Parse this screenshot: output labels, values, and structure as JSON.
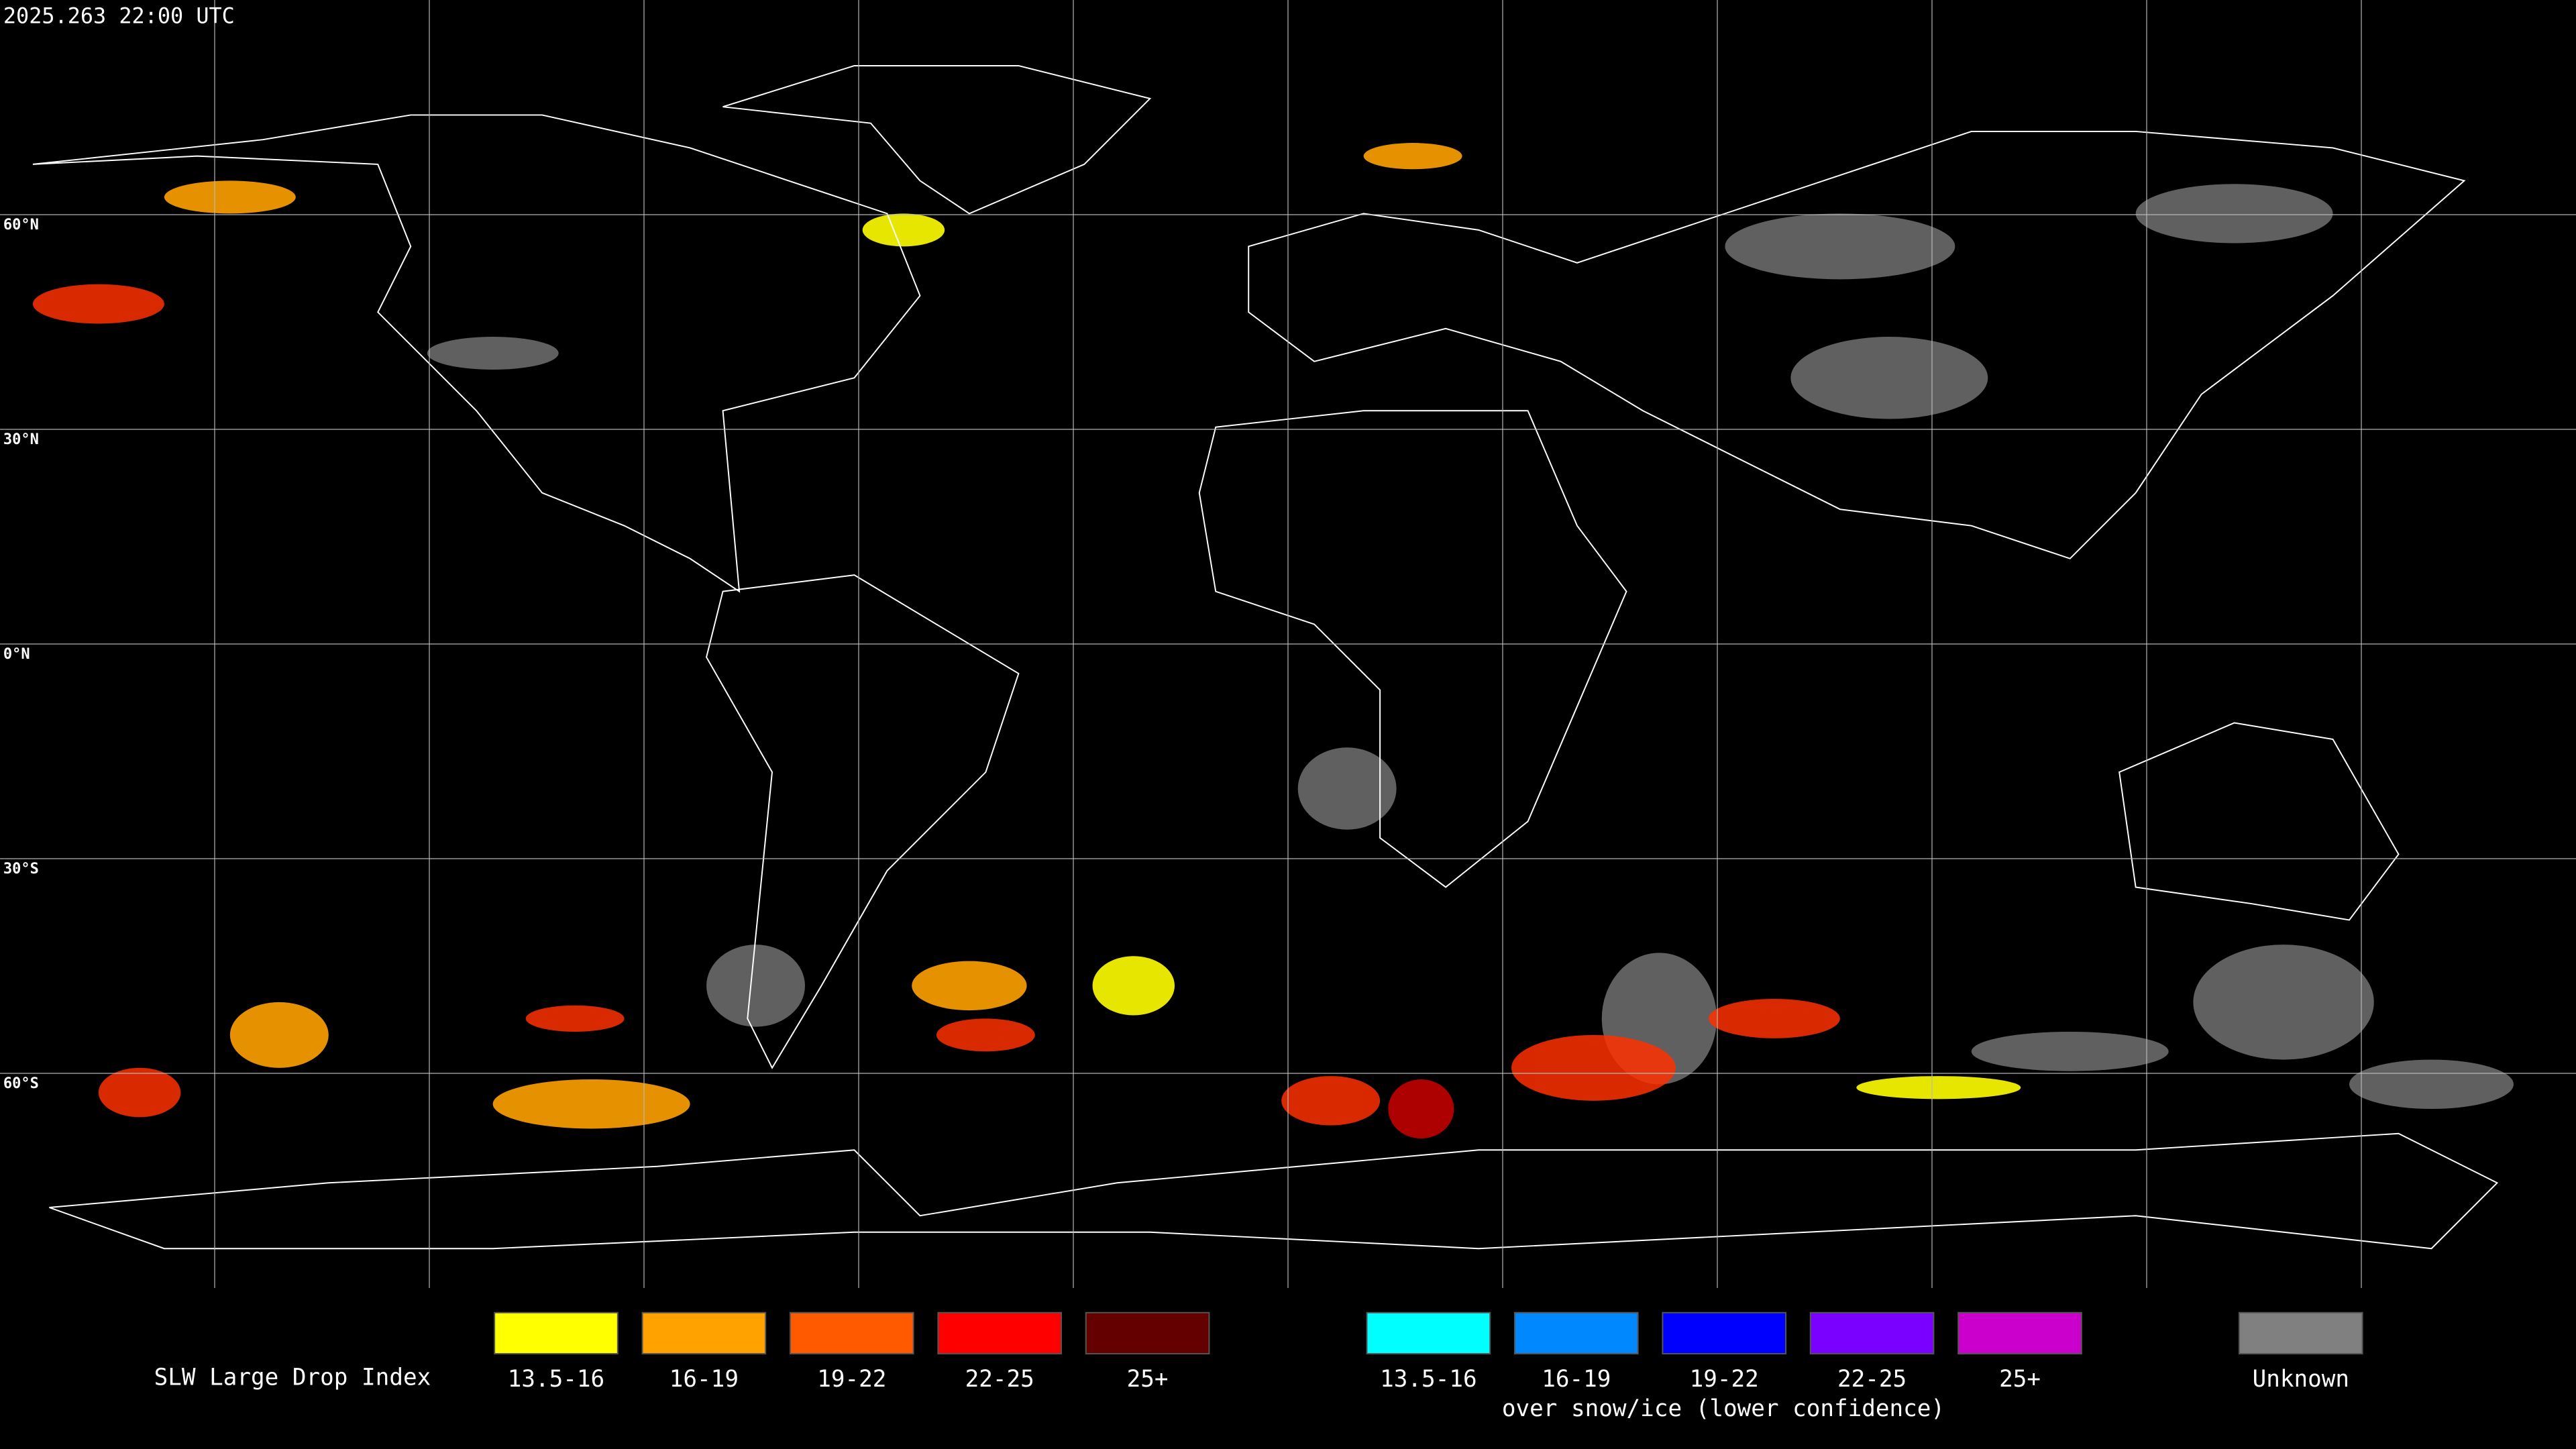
{
  "header": {
    "title": "2025.263 22:00 UTC"
  },
  "latitude_labels": [
    "60°N",
    "30°N",
    "0°N",
    "30°S",
    "60°S"
  ],
  "legend": {
    "title": "SLW Large Drop Index",
    "liquid": [
      {
        "label": "13.5-16",
        "color": "#ffff00"
      },
      {
        "label": "16-19",
        "color": "#ffa200"
      },
      {
        "label": "19-22",
        "color": "#ff5a00"
      },
      {
        "label": "22-25",
        "color": "#ff0000"
      },
      {
        "label": "25+",
        "color": "#640000"
      }
    ],
    "snow_ice": [
      {
        "label": "13.5-16",
        "color": "#00ffff"
      },
      {
        "label": "16-19",
        "color": "#0088ff"
      },
      {
        "label": "19-22",
        "color": "#0000ff"
      },
      {
        "label": "22-25",
        "color": "#7a00ff"
      },
      {
        "label": "25+",
        "color": "#cc00cc"
      }
    ],
    "snow_ice_caption": "over snow/ice (lower confidence)",
    "unknown": {
      "label": "Unknown",
      "color": "#808080"
    }
  }
}
